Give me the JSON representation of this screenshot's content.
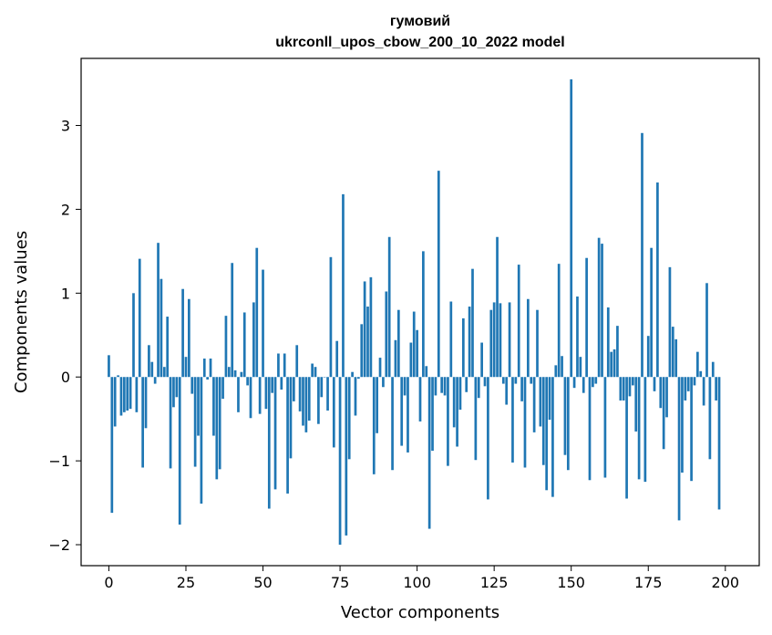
{
  "chart_data": {
    "type": "bar",
    "title_lines": [
      "гумовий",
      "ukrconll_upos_cbow_200_10_2022 model"
    ],
    "xlabel": "Vector components",
    "ylabel": "Components values",
    "xlim": [
      -9,
      211
    ],
    "ylim": [
      -2.25,
      3.8
    ],
    "xticks": [
      0,
      25,
      50,
      75,
      100,
      125,
      150,
      175,
      200
    ],
    "yticks": [
      -2,
      -1,
      0,
      1,
      2,
      3
    ],
    "ytick_labels": [
      "−2",
      "−1",
      "0",
      "1",
      "2",
      "3"
    ],
    "bar_color": "#1f77b4",
    "grid": false,
    "values": [
      0.26,
      -1.62,
      -0.59,
      0.02,
      -0.46,
      -0.42,
      -0.4,
      -0.38,
      1.0,
      -0.42,
      1.41,
      -1.08,
      -0.61,
      0.38,
      0.18,
      -0.08,
      1.6,
      1.17,
      0.12,
      0.72,
      -1.09,
      -0.36,
      -0.24,
      -1.76,
      1.05,
      0.24,
      0.93,
      -0.2,
      -1.07,
      -0.7,
      -1.51,
      0.22,
      -0.03,
      0.22,
      -0.7,
      -1.22,
      -1.1,
      -0.26,
      0.73,
      0.12,
      1.36,
      0.08,
      -0.42,
      0.06,
      0.77,
      -0.1,
      -0.49,
      0.89,
      1.54,
      -0.44,
      1.28,
      -0.38,
      -1.57,
      -0.19,
      -1.34,
      0.28,
      -0.15,
      0.28,
      -1.39,
      -0.97,
      -0.29,
      0.38,
      -0.41,
      -0.58,
      -0.66,
      -0.52,
      0.16,
      0.12,
      -0.56,
      -0.24,
      0.0,
      -0.4,
      1.43,
      -0.84,
      0.43,
      -2.0,
      2.18,
      -1.89,
      -0.98,
      0.06,
      -0.46,
      -0.02,
      0.63,
      1.14,
      0.84,
      1.19,
      -1.16,
      -0.67,
      0.23,
      -0.12,
      1.02,
      1.67,
      -1.11,
      0.44,
      0.8,
      -0.82,
      -0.22,
      -0.9,
      0.41,
      0.78,
      0.56,
      -0.53,
      1.5,
      0.13,
      -1.81,
      -0.88,
      -0.22,
      2.46,
      -0.19,
      -0.22,
      -1.06,
      0.9,
      -0.6,
      -0.83,
      -0.39,
      0.7,
      -0.18,
      0.84,
      1.29,
      -0.99,
      -0.25,
      0.41,
      -0.11,
      -1.46,
      0.8,
      0.89,
      1.67,
      0.88,
      -0.08,
      -0.33,
      0.89,
      -1.02,
      -0.08,
      1.34,
      -0.29,
      -1.08,
      0.93,
      -0.08,
      -0.66,
      0.8,
      -0.59,
      -1.05,
      -1.35,
      -0.51,
      -1.43,
      0.14,
      1.35,
      0.25,
      -0.93,
      -1.11,
      3.55,
      -0.13,
      0.96,
      0.24,
      -0.19,
      1.42,
      -1.23,
      -0.12,
      -0.08,
      1.66,
      1.59,
      -1.2,
      0.83,
      0.3,
      0.33,
      0.61,
      -0.28,
      -0.28,
      -1.45,
      -0.23,
      -0.1,
      -0.65,
      -1.22,
      2.91,
      -1.25,
      0.49,
      1.54,
      -0.17,
      2.32,
      -0.37,
      -0.86,
      -0.48,
      1.31,
      0.6,
      0.45,
      -1.71,
      -1.14,
      -0.28,
      -0.17,
      -1.24,
      -0.1,
      0.3,
      0.07,
      -0.34,
      1.12,
      -0.98,
      0.18,
      -0.28,
      -1.58
    ]
  }
}
